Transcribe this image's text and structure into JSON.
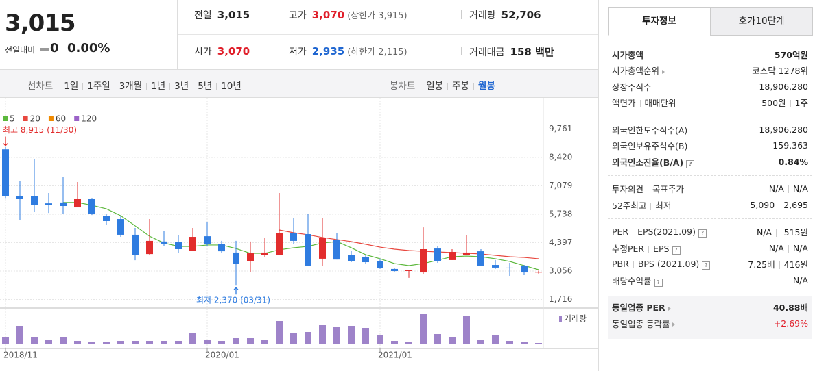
{
  "header": {
    "price": "3,015",
    "change_label": "전일대비",
    "change": "0",
    "change_pct": "0.00%",
    "stats": [
      [
        {
          "label": "전일",
          "value": "3,015"
        },
        {
          "label": "고가",
          "value": "3,070",
          "color": "#e0202b",
          "note": "(상한가 3,915)"
        },
        {
          "label": "거래량",
          "value": "52,706"
        }
      ],
      [
        {
          "label": "시가",
          "value": "3,070",
          "color": "#e0202b"
        },
        {
          "label": "저가",
          "value": "2,935",
          "color": "#1f66d1",
          "note": "(하한가 2,115)"
        },
        {
          "label": "거래대금",
          "value": "158 백만"
        }
      ]
    ]
  },
  "period_bar": {
    "line_label": "선차트",
    "line_options": [
      "1일",
      "1주일",
      "3개월",
      "1년",
      "3년",
      "5년",
      "10년"
    ],
    "candle_label": "봉차트",
    "candle_options": [
      "일봉",
      "주봉",
      "월봉"
    ],
    "selected_index": 2
  },
  "chart_data": {
    "type": "candlestick",
    "categories": [
      "2018/11",
      null,
      null,
      null,
      null,
      null,
      null,
      null,
      null,
      null,
      null,
      null,
      null,
      null,
      "2020/01",
      null,
      null,
      null,
      null,
      null,
      null,
      null,
      null,
      null,
      null,
      null,
      "2021/01",
      null,
      null,
      null,
      null,
      null,
      null,
      null,
      null,
      null,
      null,
      null
    ],
    "open": [
      8800,
      6580,
      6580,
      6250,
      6290,
      6060,
      6480,
      5670,
      5510,
      4770,
      3860,
      4450,
      4420,
      4025,
      4700,
      4320,
      3930,
      3510,
      3830,
      3830,
      4865,
      4800,
      3640,
      4510,
      3830,
      3735,
      3540,
      3155,
      3056,
      2990,
      4120,
      3575,
      3830,
      3990,
      3345,
      3220,
      3315,
      3010
    ],
    "high": [
      8915,
      7288,
      8354,
      6740,
      7515,
      7255,
      6510,
      5740,
      5670,
      5090,
      5510,
      4930,
      4770,
      5090,
      5380,
      4480,
      4480,
      4450,
      4640,
      6740,
      5575,
      5740,
      5575,
      4865,
      4025,
      3830,
      3640,
      3185,
      3090,
      5120,
      4220,
      4090,
      4770,
      4090,
      3575,
      3445,
      3345,
      3070
    ],
    "low": [
      6500,
      5447,
      5835,
      5800,
      5770,
      6060,
      5700,
      5220,
      4670,
      3570,
      3830,
      4220,
      3900,
      4025,
      4250,
      3900,
      2370,
      2990,
      3735,
      3800,
      4350,
      3280,
      3280,
      3600,
      3475,
      3380,
      3155,
      2990,
      2735,
      2895,
      3445,
      3575,
      3830,
      3280,
      3155,
      2830,
      2860,
      2935
    ],
    "close": [
      6580,
      6480,
      6160,
      6160,
      6125,
      6480,
      5770,
      5415,
      4770,
      3830,
      4480,
      4350,
      4090,
      4670,
      4320,
      3990,
      3380,
      3895,
      3930,
      4865,
      4480,
      3315,
      4610,
      3600,
      3540,
      3475,
      3185,
      3056,
      3090,
      4090,
      3540,
      3960,
      3930,
      3315,
      3220,
      3185,
      2990,
      3015
    ],
    "up_color": "#e22d2d",
    "down_color": "#2f7ce0",
    "moving_averages": [
      {
        "name": "5",
        "color": "#5cb83c",
        "values": [
          null,
          null,
          null,
          null,
          6290,
          6290,
          6160,
          5995,
          5670,
          5190,
          4700,
          4380,
          4220,
          4220,
          4285,
          4285,
          4120,
          3895,
          3895,
          4060,
          4155,
          4220,
          4380,
          4450,
          4155,
          3830,
          3640,
          3410,
          3315,
          3410,
          3570,
          3735,
          3765,
          3735,
          3640,
          3510,
          3315,
          3120
        ]
      },
      {
        "name": "20",
        "color": "#e8483f",
        "values": [
          null,
          null,
          null,
          null,
          null,
          null,
          null,
          null,
          null,
          null,
          null,
          null,
          null,
          null,
          null,
          null,
          null,
          null,
          null,
          4995,
          4865,
          4770,
          4640,
          4545,
          4445,
          4320,
          4185,
          4090,
          4025,
          3990,
          3960,
          3930,
          3895,
          3865,
          3800,
          3735,
          3700,
          3640
        ]
      },
      {
        "name": "60",
        "color": "#f08a00",
        "values": [
          null,
          null,
          null,
          null,
          null,
          null,
          null,
          null,
          null,
          null,
          null,
          null,
          null,
          null,
          null,
          null,
          null,
          null,
          null,
          null,
          null,
          null,
          null,
          null,
          null,
          null,
          null,
          null,
          null,
          null,
          null,
          null,
          null,
          null,
          null,
          null,
          null,
          null
        ]
      },
      {
        "name": "120",
        "color": "#9b62c8",
        "values": [
          null,
          null,
          null,
          null,
          null,
          null,
          null,
          null,
          null,
          null,
          null,
          null,
          null,
          null,
          null,
          null,
          null,
          null,
          null,
          null,
          null,
          null,
          null,
          null,
          null,
          null,
          null,
          null,
          null,
          null,
          null,
          null,
          null,
          null,
          null,
          null,
          null,
          null
        ]
      }
    ],
    "ylim": [
      1408,
      11004
    ],
    "yticks": [
      {
        "value": 9761,
        "label": "9,761"
      },
      {
        "value": 8420,
        "label": "8,420"
      },
      {
        "value": 7079,
        "label": "7,079"
      },
      {
        "value": 5738,
        "label": "5,738"
      },
      {
        "value": 4397,
        "label": "4,397"
      },
      {
        "value": 3056,
        "label": "3,056"
      },
      {
        "value": 1716,
        "label": "1,716"
      }
    ],
    "grid": true,
    "annotations": [
      {
        "text": "최고 8,915 (11/30)",
        "index": 0,
        "value": 8915,
        "color": "#e22d2d"
      },
      {
        "text": "최저 2,370 (03/31)",
        "index": 16,
        "value": 2370,
        "color": "#2f7ce0"
      }
    ],
    "volume": {
      "label": "거래량",
      "color": "#9e83c9",
      "values": [
        10,
        26,
        10,
        5,
        9,
        4,
        3,
        3,
        4,
        4,
        4,
        4,
        4,
        16,
        5,
        4,
        8,
        8,
        6,
        33,
        16,
        17,
        27,
        25,
        26,
        23,
        13,
        4,
        3,
        44,
        14,
        9,
        40,
        6,
        12,
        4,
        3,
        1
      ]
    }
  },
  "side_panel": {
    "tabs": [
      "투자정보",
      "호가10단계"
    ],
    "selected_tab": 0,
    "groups": [
      {
        "rows": [
          {
            "labels": [
              "시가총액"
            ],
            "values": [
              "570억원"
            ],
            "bold": true
          },
          {
            "labels": [
              "시가총액순위"
            ],
            "arrow": true,
            "values": [
              "코스닥 1278위"
            ]
          },
          {
            "labels": [
              "상장주식수"
            ],
            "values": [
              "18,906,280"
            ]
          },
          {
            "labels": [
              "액면가",
              "매매단위"
            ],
            "values": [
              "500원",
              "1주"
            ]
          }
        ]
      },
      {
        "rows": [
          {
            "labels": [
              "외국인한도주식수(A)"
            ],
            "values": [
              "18,906,280"
            ]
          },
          {
            "labels": [
              "외국인보유주식수(B)"
            ],
            "values": [
              "159,363"
            ]
          },
          {
            "labels": [
              "외국인소진율(B/A)"
            ],
            "help": true,
            "values": [
              "0.84%"
            ],
            "bold": true
          }
        ]
      },
      {
        "rows": [
          {
            "labels": [
              "투자의견",
              "목표주가"
            ],
            "values": [
              "N/A",
              "N/A"
            ]
          },
          {
            "labels": [
              "52주최고",
              "최저"
            ],
            "values": [
              "5,090",
              "2,695"
            ]
          }
        ]
      },
      {
        "rows": [
          {
            "labels": [
              "PER",
              "EPS(2021.09)"
            ],
            "help": true,
            "values": [
              "N/A",
              "-515원"
            ]
          },
          {
            "labels": [
              "추정PER",
              "EPS"
            ],
            "help": true,
            "values": [
              "N/A",
              "N/A"
            ]
          },
          {
            "labels": [
              "PBR",
              "BPS (2021.09)"
            ],
            "help": true,
            "values": [
              "7.25배",
              "416원"
            ]
          },
          {
            "labels": [
              "배당수익률"
            ],
            "help": true,
            "values": [
              "N/A"
            ]
          }
        ]
      },
      {
        "shaded": true,
        "rows": [
          {
            "labels": [
              "동일업종 PER"
            ],
            "arrow": true,
            "values": [
              "40.88배"
            ],
            "bold": true
          },
          {
            "labels": [
              "동일업종 등락률"
            ],
            "arrow": true,
            "values": [
              "+2.69%"
            ],
            "color": "#e0202b"
          }
        ]
      }
    ]
  }
}
